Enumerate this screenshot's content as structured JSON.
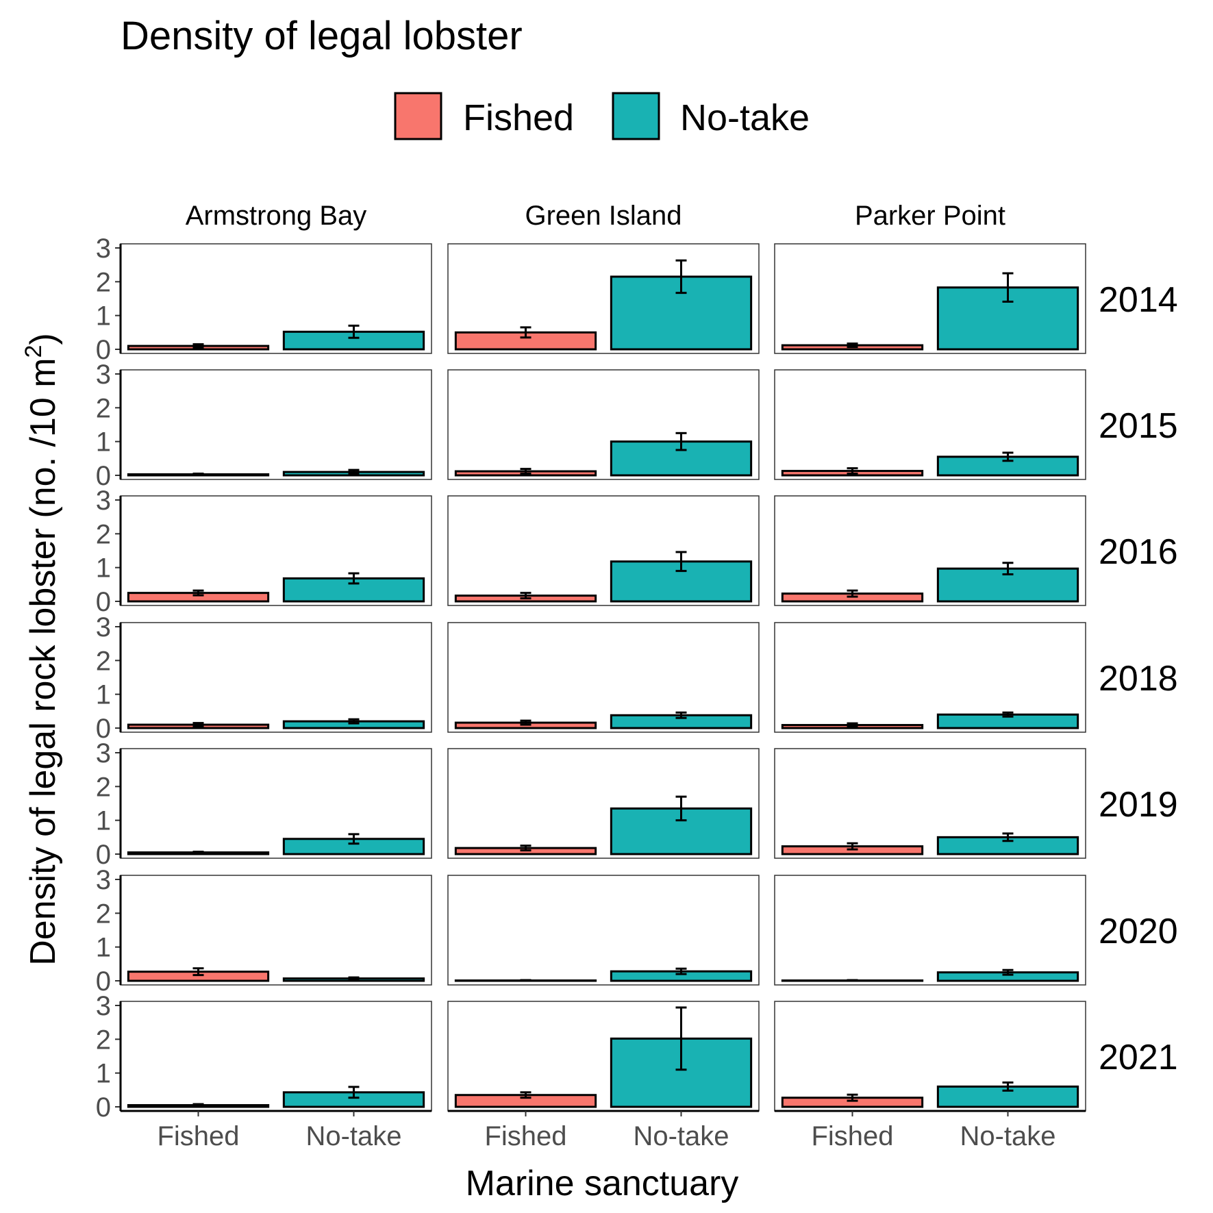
{
  "chart_data": {
    "type": "bar",
    "title": "Density of legal lobster",
    "xlabel": "Marine sanctuary",
    "ylabel": "Density of legal rock lobster (no. /10 m",
    "ylabel_superscript": "2",
    "ylabel_suffix": ")",
    "ylim": [
      0,
      3
    ],
    "yticks": [
      "0",
      "1",
      "2",
      "3"
    ],
    "categories": [
      "Fished",
      "No-take"
    ],
    "colors": {
      "Fished": "#F8766D",
      "No-take": "#19B2B3"
    },
    "legend": {
      "position": "top",
      "items": [
        "Fished",
        "No-take"
      ]
    },
    "grid": false,
    "facet_columns": [
      "Armstrong Bay",
      "Green Island",
      "Parker Point"
    ],
    "facet_rows": [
      "2014",
      "2015",
      "2016",
      "2018",
      "2019",
      "2020",
      "2021"
    ],
    "panels": [
      {
        "row": "2014",
        "col": "Armstrong Bay",
        "values": [
          0.1,
          0.52
        ],
        "errors": [
          0.05,
          0.18
        ]
      },
      {
        "row": "2014",
        "col": "Green Island",
        "values": [
          0.5,
          2.15
        ],
        "errors": [
          0.15,
          0.48
        ]
      },
      {
        "row": "2014",
        "col": "Parker Point",
        "values": [
          0.12,
          1.83
        ],
        "errors": [
          0.05,
          0.42
        ]
      },
      {
        "row": "2015",
        "col": "Armstrong Bay",
        "values": [
          0.03,
          0.1
        ],
        "errors": [
          0.02,
          0.06
        ]
      },
      {
        "row": "2015",
        "col": "Green Island",
        "values": [
          0.12,
          1.0
        ],
        "errors": [
          0.07,
          0.25
        ]
      },
      {
        "row": "2015",
        "col": "Parker Point",
        "values": [
          0.13,
          0.55
        ],
        "errors": [
          0.08,
          0.12
        ]
      },
      {
        "row": "2016",
        "col": "Armstrong Bay",
        "values": [
          0.25,
          0.68
        ],
        "errors": [
          0.07,
          0.15
        ]
      },
      {
        "row": "2016",
        "col": "Green Island",
        "values": [
          0.17,
          1.18
        ],
        "errors": [
          0.08,
          0.28
        ]
      },
      {
        "row": "2016",
        "col": "Parker Point",
        "values": [
          0.23,
          0.97
        ],
        "errors": [
          0.09,
          0.17
        ]
      },
      {
        "row": "2018",
        "col": "Armstrong Bay",
        "values": [
          0.1,
          0.2
        ],
        "errors": [
          0.05,
          0.06
        ]
      },
      {
        "row": "2018",
        "col": "Green Island",
        "values": [
          0.16,
          0.38
        ],
        "errors": [
          0.06,
          0.08
        ]
      },
      {
        "row": "2018",
        "col": "Parker Point",
        "values": [
          0.09,
          0.4
        ],
        "errors": [
          0.05,
          0.06
        ]
      },
      {
        "row": "2019",
        "col": "Armstrong Bay",
        "values": [
          0.05,
          0.45
        ],
        "errors": [
          0.02,
          0.14
        ]
      },
      {
        "row": "2019",
        "col": "Green Island",
        "values": [
          0.18,
          1.35
        ],
        "errors": [
          0.07,
          0.35
        ]
      },
      {
        "row": "2019",
        "col": "Parker Point",
        "values": [
          0.23,
          0.5
        ],
        "errors": [
          0.09,
          0.11
        ]
      },
      {
        "row": "2020",
        "col": "Armstrong Bay",
        "values": [
          0.27,
          0.07
        ],
        "errors": [
          0.1,
          0.03
        ]
      },
      {
        "row": "2020",
        "col": "Green Island",
        "values": [
          0.01,
          0.28
        ],
        "errors": [
          0.01,
          0.08
        ]
      },
      {
        "row": "2020",
        "col": "Parker Point",
        "values": [
          0.01,
          0.25
        ],
        "errors": [
          0.01,
          0.07
        ]
      },
      {
        "row": "2021",
        "col": "Armstrong Bay",
        "values": [
          0.05,
          0.43
        ],
        "errors": [
          0.03,
          0.16
        ]
      },
      {
        "row": "2021",
        "col": "Green Island",
        "values": [
          0.35,
          2.02
        ],
        "errors": [
          0.08,
          0.92
        ]
      },
      {
        "row": "2021",
        "col": "Parker Point",
        "values": [
          0.27,
          0.6
        ],
        "errors": [
          0.09,
          0.12
        ]
      }
    ]
  }
}
